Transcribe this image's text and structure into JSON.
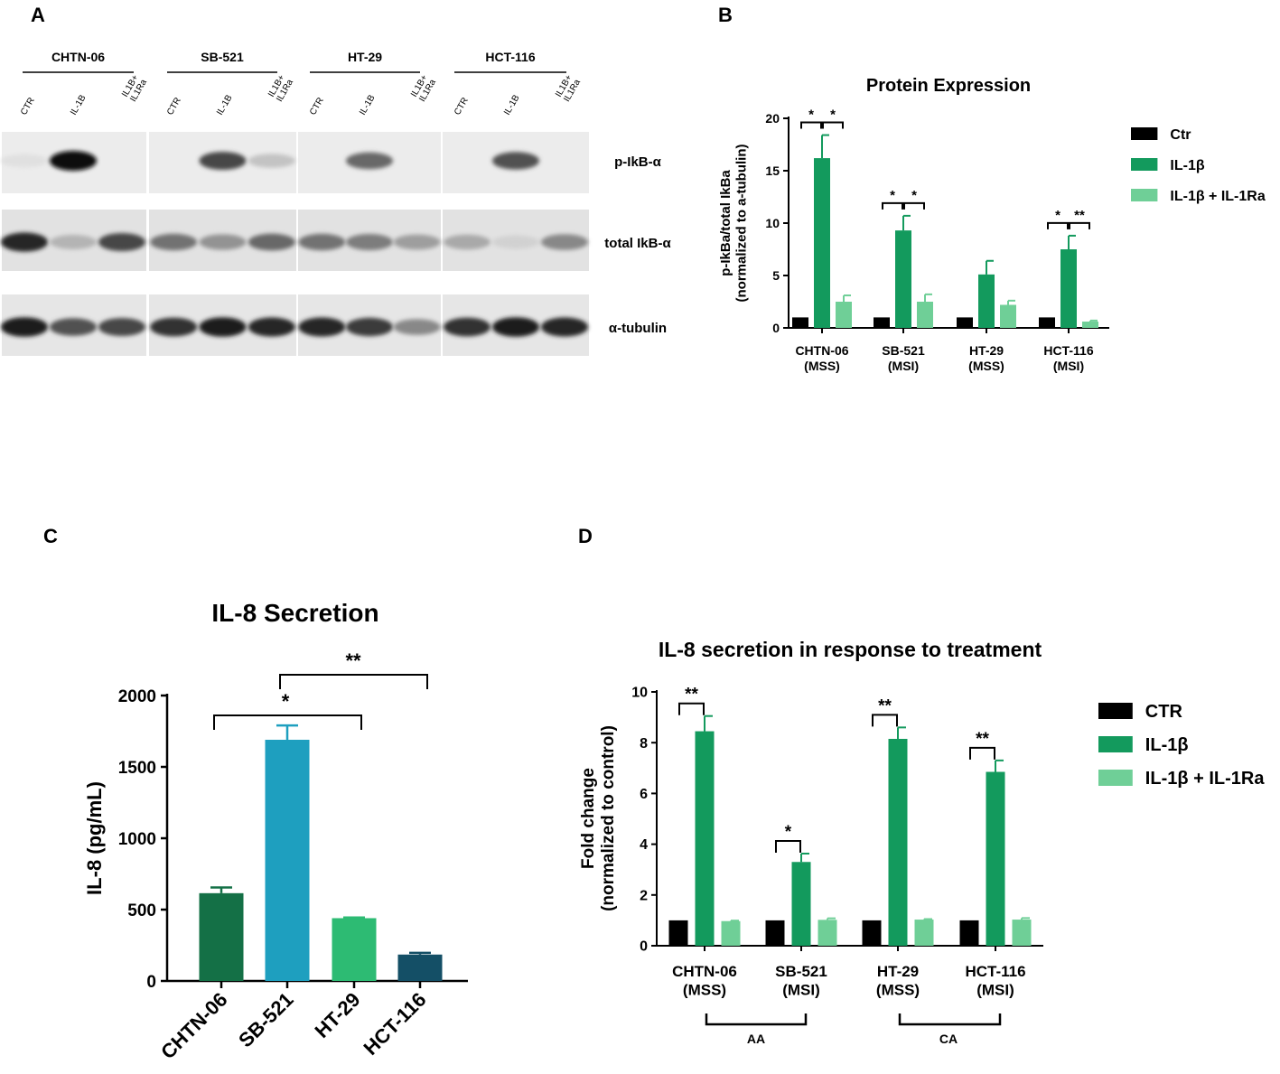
{
  "panels": {
    "A": {
      "letter": "A",
      "cell_lines": [
        "CHTN-06",
        "SB-521",
        "HT-29",
        "HCT-116"
      ],
      "lane_labels": [
        "CTR",
        "IL-1B",
        "IL1B+\nIL1Ra"
      ],
      "blot_labels": [
        "p-IkB-α",
        "total IkB-α",
        "α-tubulin"
      ]
    },
    "B": {
      "letter": "B"
    },
    "C": {
      "letter": "C"
    },
    "D": {
      "letter": "D",
      "groups": [
        "AA",
        "CA"
      ]
    }
  },
  "chart_data": [
    {
      "panel": "B",
      "type": "bar",
      "title": "Protein Expression",
      "ylabel": "p-IkBa/total IkBa\n(normalized to a-tubulin)",
      "categories": [
        "CHTN-06\n(MSS)",
        "SB-521\n(MSI)",
        "HT-29\n(MSS)",
        "HCT-116\n(MSI)"
      ],
      "ylim": [
        0,
        20
      ],
      "yticks": [
        0,
        5,
        10,
        15,
        20
      ],
      "legend": "right",
      "series": [
        {
          "name": "Ctr",
          "values": [
            1,
            1,
            1,
            1
          ],
          "errors": [
            0,
            0,
            0,
            0
          ],
          "color": "#000000"
        },
        {
          "name": "IL-1β",
          "values": [
            16.2,
            9.3,
            5.1,
            7.5
          ],
          "errors": [
            2.2,
            1.4,
            1.3,
            1.3
          ],
          "color": "#139a5d"
        },
        {
          "name": "IL-1β + IL-1Ra",
          "values": [
            2.5,
            2.5,
            2.2,
            0.6
          ],
          "errors": [
            0.6,
            0.7,
            0.4,
            0.1
          ],
          "color": "#6fcf97"
        }
      ],
      "significance": [
        {
          "category": 0,
          "from": 0,
          "to": 1,
          "label": "*"
        },
        {
          "category": 0,
          "from": 1,
          "to": 2,
          "label": "*"
        },
        {
          "category": 1,
          "from": 0,
          "to": 1,
          "label": "*"
        },
        {
          "category": 1,
          "from": 1,
          "to": 2,
          "label": "*"
        },
        {
          "category": 3,
          "from": 0,
          "to": 1,
          "label": "*"
        },
        {
          "category": 3,
          "from": 1,
          "to": 2,
          "label": "**"
        }
      ]
    },
    {
      "panel": "C",
      "type": "bar",
      "title": "IL-8 Secretion",
      "ylabel": "IL-8 (pg/mL)",
      "categories": [
        "CHTN-06",
        "SB-521",
        "HT-29",
        "HCT-116"
      ],
      "values": [
        615,
        1690,
        440,
        185
      ],
      "errors": [
        40,
        100,
        5,
        12
      ],
      "colors": [
        "#147046",
        "#1e9fbf",
        "#2dbb73",
        "#144f66"
      ],
      "ylim": [
        0,
        2000
      ],
      "yticks": [
        0,
        500,
        1000,
        1500,
        2000
      ],
      "significance": [
        {
          "from": 0,
          "to": 2,
          "label": "*"
        },
        {
          "from": 1,
          "to": 3,
          "label": "**"
        }
      ]
    },
    {
      "panel": "D",
      "type": "bar",
      "title": "IL-8 secretion in response to treatment",
      "ylabel": "Fold change\n(normalized to control)",
      "categories": [
        "CHTN-06\n(MSS)",
        "SB-521\n(MSI)",
        "HT-29\n(MSS)",
        "HCT-116\n(MSI)"
      ],
      "ylim": [
        0,
        10
      ],
      "yticks": [
        0,
        2,
        4,
        6,
        8,
        10
      ],
      "legend": "right",
      "series": [
        {
          "name": "CTR",
          "values": [
            1,
            1,
            1,
            1
          ],
          "errors": [
            0,
            0,
            0,
            0
          ],
          "color": "#000000"
        },
        {
          "name": "IL-1β",
          "values": [
            8.45,
            3.3,
            8.15,
            6.85
          ],
          "errors": [
            0.6,
            0.33,
            0.45,
            0.45
          ],
          "color": "#139a5d"
        },
        {
          "name": "IL-1β + IL-1Ra",
          "values": [
            0.97,
            1.02,
            1.03,
            1.03
          ],
          "errors": [
            0.02,
            0.06,
            0.02,
            0.06
          ],
          "color": "#6fcf97"
        }
      ],
      "significance": [
        {
          "category": 0,
          "from": 0,
          "to": 1,
          "label": "**"
        },
        {
          "category": 1,
          "from": 0,
          "to": 1,
          "label": "*"
        },
        {
          "category": 2,
          "from": 0,
          "to": 1,
          "label": "**"
        },
        {
          "category": 3,
          "from": 0,
          "to": 1,
          "label": "**"
        }
      ]
    }
  ]
}
